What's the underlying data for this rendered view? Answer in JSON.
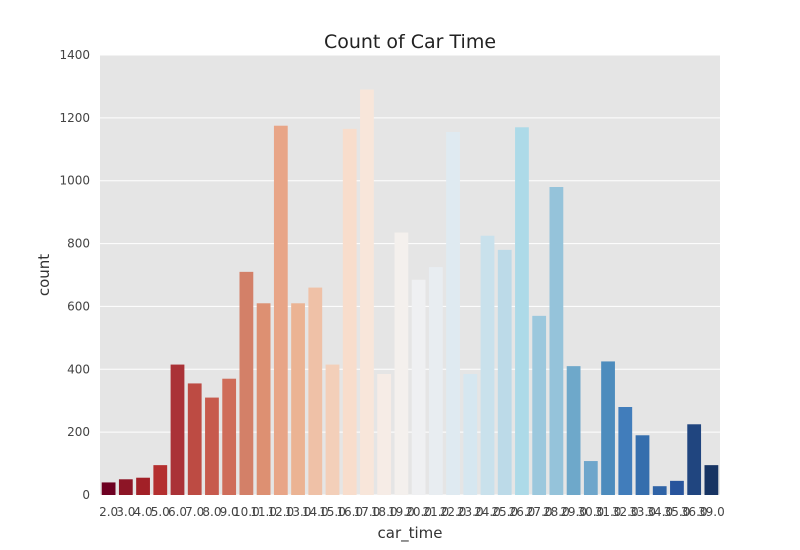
{
  "chart_data": {
    "type": "bar",
    "title": "Count of Car Time",
    "xlabel": "car_time",
    "ylabel": "count",
    "ylim": [
      0,
      1400
    ],
    "yticks": [
      0,
      200,
      400,
      600,
      800,
      1000,
      1200,
      1400
    ],
    "grid": true,
    "categories": [
      "2.0",
      "3.0",
      "4.0",
      "5.0",
      "6.0",
      "7.0",
      "8.0",
      "9.0",
      "10.0",
      "11.0",
      "12.0",
      "13.0",
      "14.0",
      "15.0",
      "16.0",
      "17.0",
      "18.0",
      "19.0",
      "20.0",
      "21.0",
      "22.0",
      "23.0",
      "24.0",
      "25.0",
      "26.0",
      "27.0",
      "28.0",
      "29.0",
      "30.0",
      "31.0",
      "32.0",
      "33.0",
      "34.0",
      "35.0",
      "36.0",
      "39.0"
    ],
    "values": [
      40,
      50,
      55,
      95,
      415,
      355,
      310,
      370,
      710,
      610,
      1175,
      610,
      660,
      415,
      1165,
      1290,
      385,
      835,
      685,
      725,
      1155,
      385,
      825,
      780,
      1170,
      570,
      980,
      410,
      108,
      425,
      280,
      190,
      28,
      45,
      225,
      95
    ],
    "colors": [
      "#6d0021",
      "#8d1526",
      "#a22027",
      "#b42f2f",
      "#aa3237",
      "#bd4b43",
      "#c75a4d",
      "#cf6d5a",
      "#d38068",
      "#dd9072",
      "#e8a587",
      "#ebb393",
      "#efc1a7",
      "#f3cfb9",
      "#f8ddcc",
      "#f8e6da",
      "#f6ece6",
      "#f4f0ed",
      "#eff0f2",
      "#e8edf1",
      "#dfeaf1",
      "#d6e7f0",
      "#c9e1ec",
      "#bcdae8",
      "#addae8",
      "#9cc8dd",
      "#95c3da",
      "#6ea8ca",
      "#6ea6cb",
      "#4d8cbd",
      "#417dbb",
      "#356ead",
      "#2f63a6",
      "#28549c",
      "#20457f",
      "#173463"
    ]
  }
}
